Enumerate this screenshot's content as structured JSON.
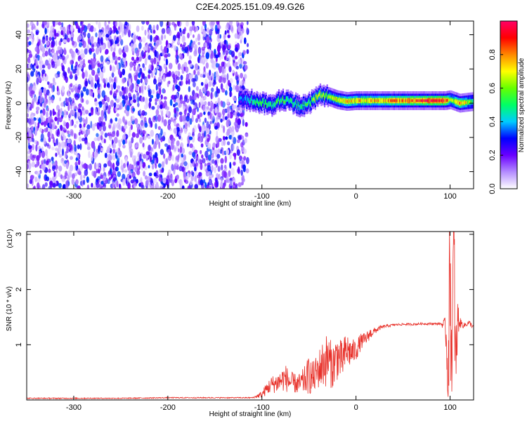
{
  "chart_data": [
    {
      "type": "heatmap",
      "title": "C2E4.2025.151.09.49.G26",
      "xlabel": "Height of straight line (km)",
      "ylabel": "Frequency (Hz)",
      "xlim": [
        -350,
        125
      ],
      "ylim": [
        -50,
        48
      ],
      "xticks": [
        -300,
        -200,
        -100,
        0,
        100
      ],
      "yticks": [
        -40,
        -20,
        0,
        20,
        40
      ],
      "colorbar": {
        "label": "Normalized spectral amplitude",
        "range": [
          0.0,
          1.0
        ],
        "ticks": [
          0.0,
          0.2,
          0.4,
          0.6,
          0.8
        ],
        "colormap": [
          "#ffffff",
          "#b48cff",
          "#6a00ff",
          "#0000ff",
          "#00ccff",
          "#00ff66",
          "#66ff00",
          "#ffff00",
          "#ff8800",
          "#ff0000",
          "#ff0066"
        ]
      },
      "regions": [
        {
          "x_range": [
            -350,
            -115
          ],
          "description_level": 0.25,
          "freq_range": [
            -50,
            48
          ]
        },
        {
          "x_range": [
            -125,
            125
          ],
          "freq_center": 1.5,
          "freq_halfwidth": 5
        }
      ],
      "ridge": {
        "x": [
          -125,
          -110,
          -100,
          -90,
          -80,
          -70,
          -60,
          -50,
          -40,
          -30,
          -20,
          -10,
          0,
          20,
          40,
          60,
          80,
          95,
          100,
          110,
          125
        ],
        "freq": [
          2,
          1.5,
          0,
          -1,
          2,
          1,
          -2,
          0,
          5,
          4,
          2,
          1,
          1.5,
          1.5,
          1.5,
          1.5,
          1.5,
          1.5,
          2,
          0,
          1
        ],
        "amplitude": [
          0.35,
          0.5,
          0.55,
          0.5,
          0.55,
          0.5,
          0.5,
          0.55,
          0.65,
          0.6,
          0.7,
          0.75,
          0.75,
          0.75,
          0.8,
          0.85,
          0.9,
          0.9,
          0.6,
          0.85,
          0.5
        ]
      }
    },
    {
      "type": "line",
      "xlabel": "Height of straight line (km)",
      "ylabel": "SNR (10 * v/v)",
      "y_multiplier": "(x10⁴)",
      "xlim": [
        -350,
        125
      ],
      "ylim": [
        0,
        3.05
      ],
      "xticks": [
        -300,
        -200,
        -100,
        0,
        100
      ],
      "yticks": [
        1,
        2,
        3
      ],
      "color": "#e8312a",
      "series": [
        {
          "x": [
            -350,
            -300,
            -250,
            -200,
            -150,
            -110,
            -100,
            -95,
            -90,
            -85,
            -80,
            -75,
            -70,
            -65,
            -60,
            -55,
            -50,
            -45,
            -40,
            -35,
            -30,
            -25,
            -20,
            -15,
            -10,
            -5,
            0,
            5,
            10,
            15,
            20,
            25,
            30,
            40,
            50,
            60,
            70,
            80,
            90,
            95,
            98,
            100,
            102,
            104,
            106,
            108,
            110,
            115,
            120,
            125
          ],
          "y": [
            0.03,
            0.03,
            0.03,
            0.04,
            0.04,
            0.04,
            0.1,
            0.2,
            0.28,
            0.3,
            0.35,
            0.4,
            0.32,
            0.3,
            0.28,
            0.35,
            0.45,
            0.4,
            0.55,
            0.65,
            0.75,
            0.6,
            0.8,
            0.7,
            0.9,
            0.85,
            0.9,
            1.05,
            1.1,
            1.2,
            1.25,
            1.3,
            1.33,
            1.36,
            1.37,
            1.37,
            1.38,
            1.38,
            1.38,
            1.35,
            0.5,
            2.5,
            0.4,
            3.0,
            0.3,
            1.5,
            1.4,
            1.35,
            1.4,
            1.32
          ],
          "noise": [
            0.01,
            0.01,
            0.01,
            0.01,
            0.01,
            0.01,
            0.06,
            0.12,
            0.15,
            0.18,
            0.2,
            0.25,
            0.2,
            0.18,
            0.2,
            0.25,
            0.35,
            0.3,
            0.35,
            0.45,
            0.5,
            0.4,
            0.45,
            0.35,
            0.35,
            0.25,
            0.2,
            0.15,
            0.12,
            0.1,
            0.06,
            0.04,
            0.03,
            0.02,
            0.02,
            0.02,
            0.02,
            0.02,
            0.02,
            0.15,
            0.9,
            1.4,
            1.2,
            1.4,
            1.0,
            0.4,
            0.1,
            0.05,
            0.05,
            0.04
          ]
        }
      ]
    }
  ]
}
